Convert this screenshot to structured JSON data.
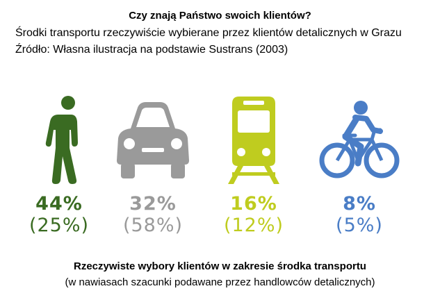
{
  "header": {
    "title": "Czy znają Państwo swoich klientów?",
    "subtitle": "Środki transportu rzeczywiście wybierane przez klientów detalicznych w Grazu",
    "source": "Źródło: Własna ilustracja na podstawie Sustrans (2003)"
  },
  "modes": [
    {
      "icon": "pedestrian-icon",
      "actual": "44%",
      "estimate": "(25%)",
      "color": "#3a6b22"
    },
    {
      "icon": "car-icon",
      "actual": "32%",
      "estimate": "(58%)",
      "color": "#9a9a9a"
    },
    {
      "icon": "tram-icon",
      "actual": "16%",
      "estimate": "(12%)",
      "color": "#bfcc1f"
    },
    {
      "icon": "bicycle-icon",
      "actual": "8%",
      "estimate": "(5%)",
      "color": "#4a7dc6"
    }
  ],
  "footer": {
    "caption": "Rzeczywiste wybory klientów w zakresie środka transportu",
    "note": "(w nawiasach szacunki podawane przez handlowców detalicznych)"
  }
}
